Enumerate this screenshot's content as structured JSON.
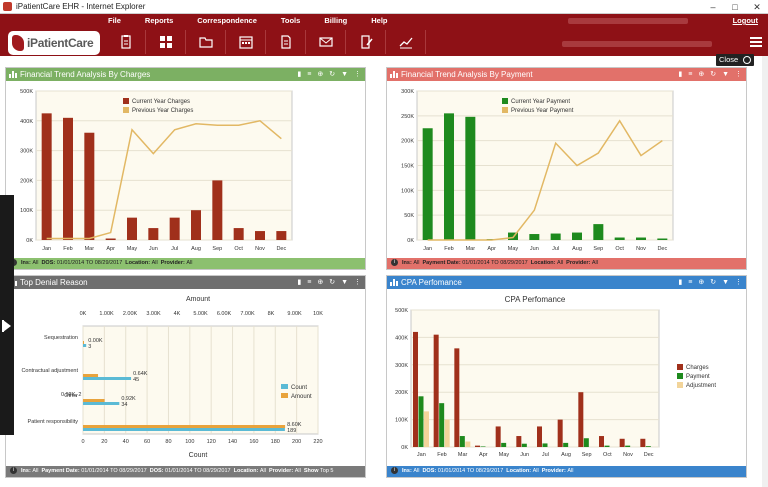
{
  "window": {
    "title": "iPatientCare EHR - Internet Explorer"
  },
  "menu": [
    "File",
    "Reports",
    "Correspondence",
    "Tools",
    "Billing",
    "Help"
  ],
  "header": {
    "logout": "Logout",
    "logo": "iPatientCare",
    "close_label": "Close"
  },
  "toolbar_icons": [
    "clipboard-icon",
    "dashboard-grid-icon",
    "folder-icon",
    "calendar-icon",
    "document-icon",
    "mail-icon",
    "edit-document-icon",
    "chart-icon"
  ],
  "panels": {
    "charges": {
      "title": "Financial Trend Analysis By Charges",
      "footer": [
        [
          "Ins:",
          "All"
        ],
        [
          "DOS:",
          "01/01/2014 TO 08/29/2017"
        ],
        [
          "Location:",
          "All"
        ],
        [
          "Provider:",
          "All"
        ]
      ]
    },
    "payment": {
      "title": "Financial Trend Analysis By Payment",
      "footer": [
        [
          "Ins:",
          "All"
        ],
        [
          "Payment Date:",
          "01/01/2014 TO 08/29/2017"
        ],
        [
          "Location:",
          "All"
        ],
        [
          "Provider:",
          "All"
        ]
      ]
    },
    "denial": {
      "title": "Top Denial Reason",
      "footer": [
        [
          "Ins:",
          "All"
        ],
        [
          "Payment Date:",
          "01/01/2014 TO 08/29/2017"
        ],
        [
          "DOS:",
          "01/01/2014 TO 08/29/2017"
        ],
        [
          "Location:",
          "All"
        ],
        [
          "Provider:",
          "All"
        ],
        [
          "Show",
          "Top 5"
        ]
      ]
    },
    "cpa": {
      "title": "CPA Perfomance",
      "footer": [
        [
          "Ins:",
          "All"
        ],
        [
          "DOS:",
          "01/01/2014 TO 08/29/2017"
        ],
        [
          "Location:",
          "All"
        ],
        [
          "Provider:",
          "All"
        ]
      ]
    }
  },
  "chart_data": [
    {
      "type": "bar",
      "categories": [
        "Jan",
        "Feb",
        "Mar",
        "Apr",
        "May",
        "Jun",
        "Jul",
        "Aug",
        "Sep",
        "Oct",
        "Nov",
        "Dec"
      ],
      "series": [
        {
          "name": "Current Year Charges",
          "kind": "bar",
          "color": "#a0301b",
          "values": [
            425000,
            410000,
            360000,
            5000,
            75000,
            40000,
            75000,
            100000,
            200000,
            40000,
            30000,
            30000
          ]
        },
        {
          "name": "Previous Year Charges",
          "kind": "line",
          "color": "#e2b864",
          "values": [
            5000,
            5000,
            5000,
            25000,
            370000,
            290000,
            370000,
            390000,
            385000,
            385000,
            400000,
            340000
          ]
        }
      ],
      "yticks": [
        "0K",
        "100K",
        "200K",
        "300K",
        "400K",
        "500K"
      ],
      "ylim": [
        0,
        500000
      ]
    },
    {
      "type": "bar",
      "categories": [
        "Jan",
        "Feb",
        "Mar",
        "Apr",
        "May",
        "Jun",
        "Jul",
        "Aug",
        "Sep",
        "Oct",
        "Nov",
        "Dec"
      ],
      "series": [
        {
          "name": "Current Year Payment",
          "kind": "bar",
          "color": "#1e8a1e",
          "values": [
            225000,
            255000,
            248000,
            2000,
            15000,
            12000,
            13000,
            15000,
            32000,
            5000,
            5000,
            3000
          ]
        },
        {
          "name": "Previous Year Payment",
          "kind": "line",
          "color": "#e2b864",
          "values": [
            0,
            0,
            0,
            0,
            5000,
            60000,
            195000,
            150000,
            175000,
            240000,
            170000,
            200000
          ]
        }
      ],
      "yticks": [
        "0K",
        "50K",
        "100K",
        "150K",
        "200K",
        "250K",
        "300K"
      ],
      "ylim": [
        0,
        300000
      ]
    },
    {
      "type": "bar",
      "orientation": "horizontal",
      "title": "Amount",
      "xlabel": "Count",
      "categories": [
        "Sequestration",
        "Contractual adjustment",
        "Other",
        "Patient responsibility"
      ],
      "series": [
        {
          "name": "Count",
          "color": "#5bbad5",
          "values": [
            3,
            45,
            34,
            189
          ]
        },
        {
          "name": "Amount",
          "color": "#e8a33c",
          "values": [
            0,
            640,
            920,
            8600
          ]
        }
      ],
      "amount_labels": [
        "0.00K",
        "0.64K",
        "0.92K",
        "8.60K"
      ],
      "count_labels": [
        "3",
        "45",
        "34",
        "189"
      ],
      "extra_label": "0.92K, 2",
      "top_ticks": [
        "0K",
        "1.00K",
        "2.00K",
        "3.00K",
        "4K",
        "5.00K",
        "6.00K",
        "7.00K",
        "8K",
        "9.00K",
        "10K"
      ],
      "bottom_ticks": [
        "0",
        "20",
        "40",
        "60",
        "80",
        "100",
        "120",
        "140",
        "160",
        "180",
        "200",
        "220"
      ]
    },
    {
      "type": "bar",
      "title": "CPA Perfomance",
      "categories": [
        "Jan",
        "Feb",
        "Mar",
        "Apr",
        "May",
        "Jun",
        "Jul",
        "Aug",
        "Sep",
        "Oct",
        "Nov",
        "Dec"
      ],
      "series": [
        {
          "name": "Charges",
          "color": "#a0301b",
          "values": [
            420000,
            410000,
            360000,
            5000,
            75000,
            40000,
            75000,
            100000,
            200000,
            40000,
            30000,
            30000
          ]
        },
        {
          "name": "Payment",
          "color": "#1e8a1e",
          "values": [
            185000,
            160000,
            40000,
            2000,
            15000,
            12000,
            13000,
            15000,
            32000,
            5000,
            5000,
            3000
          ]
        },
        {
          "name": "Adjustment",
          "color": "#f2d49a",
          "values": [
            130000,
            100000,
            20000,
            0,
            0,
            0,
            0,
            0,
            0,
            0,
            0,
            0
          ]
        }
      ],
      "yticks": [
        "0K",
        "100K",
        "200K",
        "300K",
        "400K",
        "500K"
      ],
      "ylim": [
        0,
        500000
      ]
    }
  ]
}
